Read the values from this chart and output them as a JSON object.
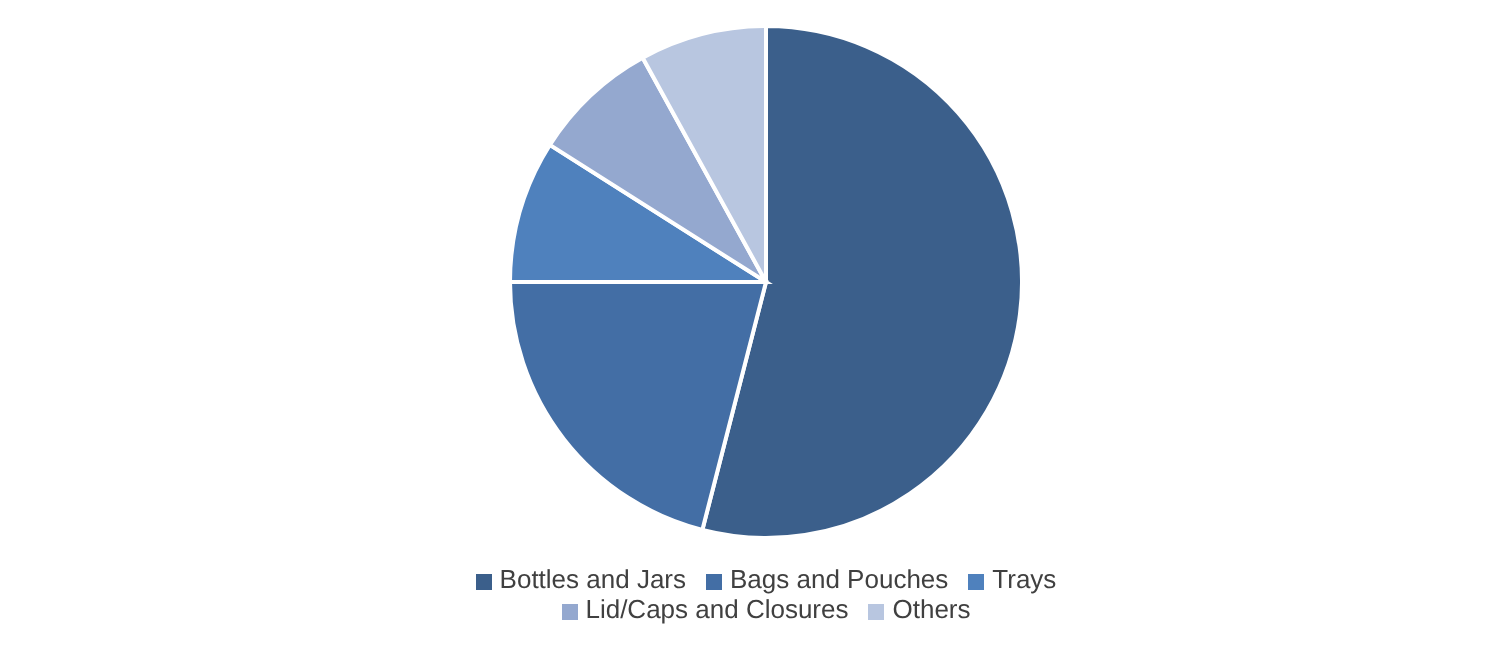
{
  "chart_data": {
    "type": "pie",
    "categories": [
      "Bottles and Jars",
      "Bags and Pouches",
      "Trays",
      "Lid/Caps and Closures",
      "Others"
    ],
    "values": [
      54,
      21,
      9,
      8,
      8
    ],
    "colors": [
      "#3b5f8b",
      "#436ea5",
      "#4f81bd",
      "#94a8cf",
      "#b8c6e0"
    ],
    "legend": "bottom"
  }
}
